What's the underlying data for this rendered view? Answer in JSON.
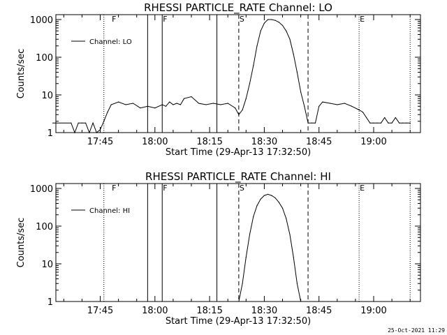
{
  "chart_data": [
    {
      "type": "line",
      "title": "RHESSI PARTICLE_RATE Channel: LO",
      "xlabel": "Start Time (29-Apr-13 17:32:50)",
      "ylabel": "Counts/sec",
      "yscale": "log",
      "ylim": [
        1,
        1000
      ],
      "xlim": [
        "17:32:50",
        "19:12:50"
      ],
      "xticks": [
        "17:45",
        "18:00",
        "18:15",
        "18:30",
        "18:45",
        "19:00"
      ],
      "yticks": [
        "1",
        "10",
        "100",
        "1000"
      ],
      "legend": {
        "placement": "top-left",
        "entries": [
          "Channel: LO"
        ]
      },
      "series": [
        {
          "name": "Channel: LO",
          "x": [
            "17:32",
            "17:37",
            "17:38",
            "17:39",
            "17:40",
            "17:41",
            "17:42",
            "17:43",
            "17:44",
            "17:45",
            "17:46",
            "17:47",
            "17:48",
            "17:50",
            "17:52",
            "17:54",
            "17:56",
            "17:58",
            "18:00",
            "18:02",
            "18:03",
            "18:04",
            "18:05",
            "18:06",
            "18:07",
            "18:08",
            "18:10",
            "18:12",
            "18:14",
            "18:16",
            "18:18",
            "18:20",
            "18:22",
            "18:23",
            "18:24",
            "18:25",
            "18:26",
            "18:27",
            "18:28",
            "18:29",
            "18:30",
            "18:31",
            "18:32",
            "18:33",
            "18:34",
            "18:35",
            "18:36",
            "18:37",
            "18:38",
            "18:39",
            "18:40",
            "18:41",
            "18:42",
            "18:43",
            "18:44",
            "18:45",
            "18:46",
            "18:48",
            "18:50",
            "18:52",
            "18:54",
            "18:56",
            "18:57",
            "18:58",
            "18:59",
            "19:00",
            "19:01",
            "19:02",
            "19:03",
            "19:04",
            "19:05",
            "19:06",
            "19:07",
            "19:08",
            "19:09",
            "19:10"
          ],
          "values": [
            1.8,
            1.8,
            1.0,
            1.8,
            1.8,
            1.8,
            1.0,
            1.8,
            1.0,
            1.2,
            2.0,
            3.5,
            5.5,
            6.5,
            5.5,
            6.0,
            4.5,
            5.0,
            4.5,
            5.5,
            5.0,
            6.5,
            5.5,
            6.0,
            5.5,
            8.0,
            9.0,
            6.0,
            5.5,
            6.0,
            5.5,
            6.0,
            4.5,
            3.0,
            4.0,
            8.0,
            20,
            60,
            200,
            500,
            800,
            1000,
            1000,
            950,
            850,
            700,
            500,
            300,
            120,
            40,
            12,
            5.0,
            1.8,
            1.8,
            1.8,
            5.0,
            6.5,
            6.0,
            5.5,
            6.0,
            5.0,
            4.0,
            3.5,
            2.5,
            1.8,
            1.8,
            1.8,
            1.8,
            2.5,
            1.8,
            1.8,
            2.5,
            1.8,
            1.8,
            1.8,
            1.8
          ]
        }
      ],
      "markers": [
        {
          "time": "17:46",
          "style": "dotted",
          "label": ""
        },
        {
          "time": "17:48",
          "style": "none",
          "label": "F"
        },
        {
          "time": "17:58",
          "style": "solid",
          "label": ""
        },
        {
          "time": "18:02",
          "style": "solid",
          "label": "F"
        },
        {
          "time": "18:17",
          "style": "solid",
          "label": ""
        },
        {
          "time": "18:23",
          "style": "dashed",
          "label": "S"
        },
        {
          "time": "18:42",
          "style": "dashed",
          "label": ""
        },
        {
          "time": "18:56",
          "style": "dotted",
          "label": "E"
        },
        {
          "time": "19:10",
          "style": "dotted",
          "label": ""
        }
      ]
    },
    {
      "type": "line",
      "title": "RHESSI PARTICLE_RATE Channel: HI",
      "xlabel": "Start Time (29-Apr-13 17:32:50)",
      "ylabel": "Counts/sec",
      "yscale": "log",
      "ylim": [
        1,
        1000
      ],
      "xlim": [
        "17:32:50",
        "19:12:50"
      ],
      "xticks": [
        "17:45",
        "18:00",
        "18:15",
        "18:30",
        "18:45",
        "19:00"
      ],
      "yticks": [
        "1",
        "10",
        "100",
        "1000"
      ],
      "legend": {
        "placement": "top-left",
        "entries": [
          "Channel: HI"
        ]
      },
      "series": [
        {
          "name": "Channel: HI",
          "x": [
            "18:23",
            "18:24",
            "18:25",
            "18:26",
            "18:27",
            "18:28",
            "18:29",
            "18:30",
            "18:31",
            "18:32",
            "18:33",
            "18:34",
            "18:35",
            "18:36",
            "18:37",
            "18:38",
            "18:39",
            "18:40"
          ],
          "values": [
            1.0,
            3.0,
            15,
            60,
            180,
            350,
            520,
            650,
            700,
            650,
            560,
            430,
            300,
            160,
            60,
            15,
            3,
            1.0
          ]
        }
      ],
      "markers": [
        {
          "time": "17:46",
          "style": "dotted",
          "label": ""
        },
        {
          "time": "17:48",
          "style": "none",
          "label": "F"
        },
        {
          "time": "17:58",
          "style": "solid",
          "label": ""
        },
        {
          "time": "18:02",
          "style": "solid",
          "label": "F"
        },
        {
          "time": "18:17",
          "style": "solid",
          "label": ""
        },
        {
          "time": "18:23",
          "style": "dashed",
          "label": "S"
        },
        {
          "time": "18:42",
          "style": "dashed",
          "label": ""
        },
        {
          "time": "18:56",
          "style": "dotted",
          "label": "E"
        },
        {
          "time": "19:10",
          "style": "dotted",
          "label": ""
        }
      ]
    }
  ],
  "footer": {
    "stamp": "25-Oct-2021 11:29"
  }
}
